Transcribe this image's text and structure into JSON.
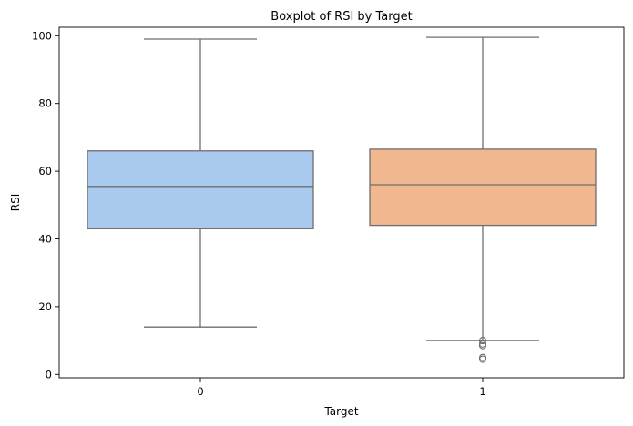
{
  "chart_data": {
    "type": "boxplot",
    "title": "Boxplot of RSI by Target",
    "xlabel": "Target",
    "ylabel": "RSI",
    "categories": [
      "0",
      "1"
    ],
    "ylim": [
      -1,
      102.5
    ],
    "yticks": [
      0,
      20,
      40,
      60,
      80,
      100
    ],
    "grid": false,
    "boxes": [
      {
        "category": "0",
        "whisker_low": 14,
        "q1": 43,
        "median": 55.5,
        "q3": 66,
        "whisker_high": 99,
        "outliers": [],
        "color": "#a9c9ef"
      },
      {
        "category": "1",
        "whisker_low": 10,
        "q1": 44,
        "median": 56,
        "q3": 66.5,
        "whisker_high": 99.5,
        "outliers": [
          10,
          9,
          8.5,
          5,
          4.5
        ],
        "color": "#f1b890"
      }
    ],
    "line_color": "#6e6e6e"
  }
}
